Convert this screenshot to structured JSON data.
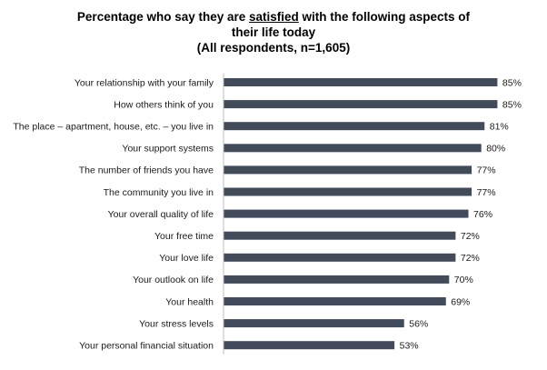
{
  "chart_data": {
    "type": "bar",
    "orientation": "horizontal",
    "title": {
      "line1_before": "Percentage who say they are ",
      "line1_emphasis": "satisfied",
      "line1_after": " with the following aspects of",
      "line2": "their life today",
      "line3": "(All respondents, n=1,605)"
    },
    "categories": [
      "Your relationship with your family",
      "How others think of you",
      "The place – apartment, house, etc. – you live in",
      "Your support systems",
      "The number of friends you have",
      "The community you live in",
      "Your overall quality of life",
      "Your free time",
      "Your love life",
      "Your outlook on life",
      "Your health",
      "Your stress levels",
      "Your personal financial situation"
    ],
    "values": [
      85,
      85,
      81,
      80,
      77,
      77,
      76,
      72,
      72,
      70,
      69,
      56,
      53
    ],
    "value_labels": [
      "85%",
      "85%",
      "81%",
      "80%",
      "77%",
      "77%",
      "76%",
      "72%",
      "72%",
      "70%",
      "69%",
      "56%",
      "53%"
    ],
    "xlim": [
      0,
      100
    ],
    "xlabel": "",
    "ylabel": "",
    "grid": false,
    "legend": "none",
    "bar_color": "#414b5a",
    "axis_color": "#bfbfbf"
  }
}
